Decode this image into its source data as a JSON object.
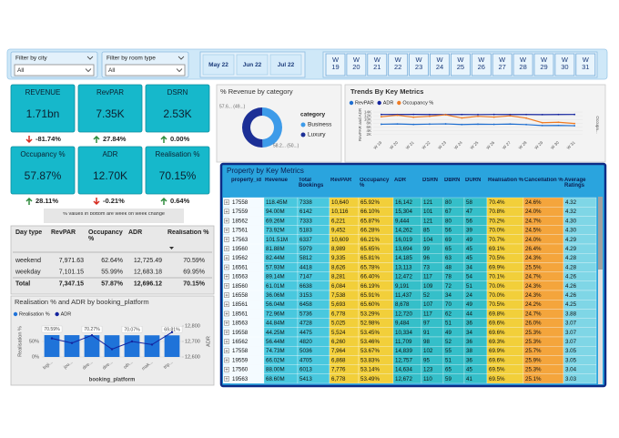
{
  "filters": [
    {
      "label": "Filter by city",
      "value": "All"
    },
    {
      "label": "Filter by room type",
      "value": "All"
    }
  ],
  "months": [
    "May 22",
    "Jun 22",
    "Jul 22"
  ],
  "weeks": [
    "W 19",
    "W 20",
    "W 21",
    "W 22",
    "W 23",
    "W 24",
    "W 25",
    "W 26",
    "W 27",
    "W 28",
    "W 29",
    "W 30",
    "W 31"
  ],
  "kpis": [
    {
      "title": "REVENUE",
      "value": "1.71bn",
      "change": "-81.74%"
    },
    {
      "title": "RevPAR",
      "value": "7.35K",
      "change": "27.84%"
    },
    {
      "title": "DSRN",
      "value": "2.53K",
      "change": "0.00%"
    },
    {
      "title": "Occupancy %",
      "value": "57.87%",
      "change": "28.11%"
    },
    {
      "title": "ADR",
      "value": "12.70K",
      "change": "-0.21%"
    },
    {
      "title": "Realisation %",
      "value": "70.15%",
      "change": "0.64%"
    }
  ],
  "kpi_note": "% values in bottom are week on week change",
  "chart_data": [
    {
      "type": "pie",
      "title": "% Revenue by category",
      "legend_title": "category",
      "categories": [
        "Business",
        "Luxury"
      ],
      "values": [
        49.7,
        50.3
      ],
      "value_labels": [
        "57.6... (49...)",
        "58.2... (50...)"
      ],
      "colors": [
        "#3d9be9",
        "#1c2f96"
      ]
    },
    {
      "type": "line",
      "title": "Trends By Key Metrics",
      "y_label": "RevPAR and ADR",
      "y2_label": "Occupa...",
      "categories": [
        "W 19",
        "W 20",
        "W 21",
        "W 22",
        "W 23",
        "W 24",
        "W 25",
        "W 26",
        "W 27",
        "W 28",
        "W 29",
        "W 30",
        "W 31"
      ],
      "series": [
        {
          "name": "RevPAR",
          "color": "#1f6fd1",
          "values": [
            7520,
            7680,
            7440,
            7600,
            7710,
            7390,
            7550,
            7480,
            7620,
            7360,
            6820,
            6900,
            6750
          ]
        },
        {
          "name": "ADR",
          "color": "#13239e",
          "values": [
            12720,
            12690,
            12750,
            12700,
            12680,
            12710,
            12660,
            12730,
            12700,
            12690,
            12650,
            12700,
            12720
          ]
        },
        {
          "name": "Occupancy %",
          "color": "#f07b22",
          "axis": "y2",
          "values": [
            59.2,
            60.5,
            58.8,
            59.6,
            60.9,
            58.1,
            59.6,
            58.9,
            60.0,
            58.0,
            53.9,
            54.3,
            53.2
          ]
        }
      ],
      "ylim": [
        0,
        15000
      ],
      "yticks": [
        {
          "value": 2000,
          "label": "2K"
        },
        {
          "value": 4000,
          "label": "4K"
        },
        {
          "value": 6000,
          "label": "6K"
        },
        {
          "value": 8000,
          "label": "8K"
        },
        {
          "value": 10000,
          "label": "10K"
        },
        {
          "value": 12000,
          "label": "12K"
        },
        {
          "value": 14000,
          "label": "14K"
        }
      ],
      "y2lim": [
        40,
        65
      ]
    },
    {
      "type": "combo",
      "title": "Realisation % and ADR by booking_platform",
      "x_label": "booking_platform",
      "y_label": "Realisation %",
      "y2_label": "ADR",
      "categories": [
        "logi...",
        "jou...",
        "dire...",
        "dire...",
        "oth...",
        "mak...",
        "trip..."
      ],
      "series": [
        {
          "name": "Realisation %",
          "color": "#1f73d9",
          "values": [
            70.59,
            70.4,
            70.27,
            70.15,
            70.07,
            69.9,
            69.81
          ],
          "value_labels": [
            "70.59%",
            null,
            "70.27%",
            null,
            "70.07%",
            null,
            "69.81%"
          ]
        },
        {
          "name": "ADR",
          "color": "#13239e",
          "axis": "y2",
          "values": [
            12720,
            12690,
            12740,
            12650,
            12700,
            12680,
            12760
          ]
        }
      ],
      "ylim": [
        0,
        100
      ],
      "yticks": [
        {
          "value": 0,
          "label": "0%"
        },
        {
          "value": 50,
          "label": "50%"
        }
      ],
      "y2lim": [
        12600,
        12800
      ],
      "y2ticks": [
        {
          "value": 12600,
          "label": "12,600"
        },
        {
          "value": 12700,
          "label": "12,700"
        },
        {
          "value": 12800,
          "label": "12,800"
        }
      ]
    }
  ],
  "property_table": {
    "title": "Property by Key Metrics",
    "columns": [
      "property_id",
      "Revenue",
      "Total Bookings",
      "RevPAR",
      "Occupancy %",
      "ADR",
      "DSRN",
      "DBRN",
      "DURN",
      "Realisation %",
      "Cancellation %",
      "Average Ratings"
    ],
    "rows": [
      [
        "17558",
        "118.45M",
        "7338",
        "10,640",
        "65.92%",
        "16,142",
        "121",
        "80",
        "58",
        "70.4%",
        "24.6%",
        "4.32"
      ],
      [
        "17559",
        "94.00M",
        "6142",
        "10,116",
        "66.10%",
        "15,304",
        "101",
        "67",
        "47",
        "70.8%",
        "24.0%",
        "4.32"
      ],
      [
        "18562",
        "69.26M",
        "7333",
        "6,221",
        "65.87%",
        "9,444",
        "121",
        "80",
        "56",
        "70.2%",
        "24.7%",
        "4.30"
      ],
      [
        "17561",
        "73.92M",
        "5183",
        "9,452",
        "66.28%",
        "14,262",
        "85",
        "56",
        "39",
        "70.0%",
        "24.5%",
        "4.30"
      ],
      [
        "17563",
        "101.51M",
        "6337",
        "10,609",
        "66.21%",
        "16,019",
        "104",
        "69",
        "49",
        "70.7%",
        "24.0%",
        "4.29"
      ],
      [
        "19560",
        "81.88M",
        "5979",
        "8,989",
        "65.65%",
        "13,694",
        "99",
        "65",
        "45",
        "69.1%",
        "26.4%",
        "4.29"
      ],
      [
        "19562",
        "82.44M",
        "5812",
        "9,335",
        "65.81%",
        "14,185",
        "96",
        "63",
        "45",
        "70.5%",
        "24.3%",
        "4.28"
      ],
      [
        "16561",
        "57.93M",
        "4418",
        "8,626",
        "65.78%",
        "13,113",
        "73",
        "48",
        "34",
        "69.9%",
        "25.5%",
        "4.28"
      ],
      [
        "16563",
        "89.14M",
        "7147",
        "8,281",
        "66.40%",
        "12,472",
        "117",
        "78",
        "54",
        "70.1%",
        "24.7%",
        "4.26"
      ],
      [
        "18560",
        "61.01M",
        "6638",
        "6,084",
        "66.19%",
        "9,191",
        "109",
        "72",
        "51",
        "70.0%",
        "24.3%",
        "4.26"
      ],
      [
        "16558",
        "36.06M",
        "3153",
        "7,538",
        "65.91%",
        "11,437",
        "52",
        "34",
        "24",
        "70.0%",
        "24.3%",
        "4.26"
      ],
      [
        "18561",
        "56.04M",
        "6458",
        "5,693",
        "65.60%",
        "8,678",
        "107",
        "70",
        "49",
        "70.5%",
        "24.2%",
        "4.25"
      ],
      [
        "18561",
        "72.96M",
        "5736",
        "6,778",
        "53.29%",
        "12,720",
        "117",
        "62",
        "44",
        "69.8%",
        "24.7%",
        "3.88"
      ],
      [
        "18563",
        "44.84M",
        "4728",
        "5,025",
        "52.98%",
        "9,484",
        "97",
        "51",
        "36",
        "69.6%",
        "26.0%",
        "3.07"
      ],
      [
        "19558",
        "44.25M",
        "4475",
        "5,524",
        "53.45%",
        "10,334",
        "91",
        "49",
        "34",
        "69.6%",
        "25.3%",
        "3.07"
      ],
      [
        "16562",
        "56.44M",
        "4820",
        "6,260",
        "53.46%",
        "11,709",
        "98",
        "52",
        "36",
        "69.3%",
        "25.3%",
        "3.07"
      ],
      [
        "17558",
        "74.73M",
        "5036",
        "7,964",
        "53.67%",
        "14,839",
        "102",
        "55",
        "38",
        "69.9%",
        "25.7%",
        "3.05"
      ],
      [
        "19559",
        "66.02M",
        "4705",
        "6,868",
        "53.83%",
        "12,757",
        "95",
        "51",
        "36",
        "69.6%",
        "25.9%",
        "3.05"
      ],
      [
        "17560",
        "88.00M",
        "6013",
        "7,776",
        "53.14%",
        "14,634",
        "123",
        "65",
        "45",
        "69.5%",
        "25.3%",
        "3.04"
      ],
      [
        "19563",
        "68.60M",
        "5413",
        "6,778",
        "53.49%",
        "12,672",
        "110",
        "59",
        "41",
        "69.5%",
        "25.1%",
        "3.03"
      ]
    ]
  },
  "daytype_table": {
    "columns": [
      "Day type",
      "RevPAR",
      "Occupancy %",
      "ADR",
      "Realisation %"
    ],
    "rows": [
      [
        "weekend",
        "7,971.63",
        "62.64%",
        "12,725.49",
        "70.59%"
      ],
      [
        "weekday",
        "7,101.15",
        "55.99%",
        "12,683.18",
        "69.95%"
      ],
      [
        "Total",
        "7,347.15",
        "57.87%",
        "12,696.12",
        "70.15%"
      ]
    ]
  }
}
